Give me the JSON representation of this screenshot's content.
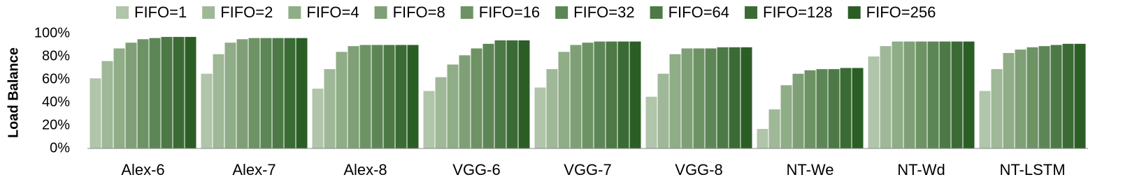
{
  "chart_data": {
    "type": "bar",
    "y_label": "Load Balance",
    "categories": [
      "Alex-6",
      "Alex-7",
      "Alex-8",
      "VGG-6",
      "VGG-7",
      "VGG-8",
      "NT-We",
      "NT-Wd",
      "NT-LSTM"
    ],
    "series": [
      {
        "name": "FIFO=1",
        "color": "#b0c5a9",
        "values": [
          61,
          65,
          52,
          50,
          53,
          45,
          17,
          80,
          50
        ]
      },
      {
        "name": "FIFO=2",
        "color": "#9fb897",
        "values": [
          76,
          82,
          69,
          62,
          69,
          65,
          34,
          89,
          69
        ]
      },
      {
        "name": "FIFO=4",
        "color": "#8fad86",
        "values": [
          87,
          92,
          84,
          73,
          84,
          82,
          55,
          93,
          83
        ]
      },
      {
        "name": "FIFO=8",
        "color": "#7fa076",
        "values": [
          92,
          95,
          89,
          81,
          90,
          87,
          65,
          93,
          86
        ]
      },
      {
        "name": "FIFO=16",
        "color": "#6d9365",
        "values": [
          95,
          96,
          90,
          87,
          92,
          87,
          68,
          93,
          88
        ]
      },
      {
        "name": "FIFO=32",
        "color": "#5d8656",
        "values": [
          96,
          96,
          90,
          91,
          93,
          87,
          69,
          93,
          89
        ]
      },
      {
        "name": "FIFO=64",
        "color": "#4c7945",
        "values": [
          97,
          96,
          90,
          94,
          93,
          88,
          69,
          93,
          90
        ]
      },
      {
        "name": "FIFO=128",
        "color": "#3b6b35",
        "values": [
          97,
          96,
          90,
          94,
          93,
          88,
          70,
          93,
          91
        ]
      },
      {
        "name": "FIFO=256",
        "color": "#2b5e25",
        "values": [
          97,
          96,
          90,
          94,
          93,
          88,
          70,
          93,
          91
        ]
      }
    ],
    "ylim": [
      0,
      100
    ],
    "yticks": [
      {
        "value": 0,
        "label": "0%"
      },
      {
        "value": 20,
        "label": "20%"
      },
      {
        "value": 40,
        "label": "40%"
      },
      {
        "value": 60,
        "label": "60%"
      },
      {
        "value": 80,
        "label": "80%"
      },
      {
        "value": 100,
        "label": "100%"
      }
    ],
    "legend": "top"
  }
}
